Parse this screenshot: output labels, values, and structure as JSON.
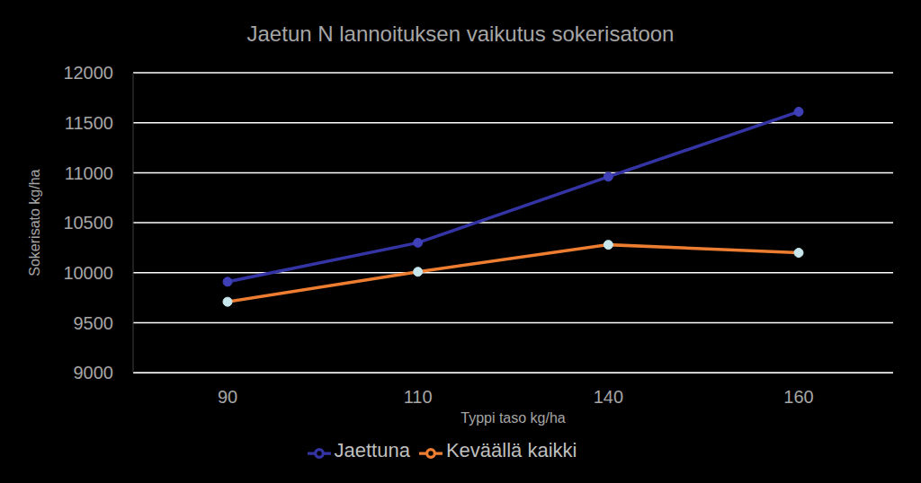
{
  "chart_data": {
    "type": "line",
    "title": "Jaetun N lannoituksen vaikutus sokerisatoon",
    "x_label": "Typpi taso kg/ha",
    "y_label": "Sokerisato kg/ha",
    "categories": [
      "90",
      "110",
      "140",
      "160"
    ],
    "series": [
      {
        "name": "Keväällä kaikki",
        "color": "#ED7D31",
        "marker": "circle",
        "values": [
          9710,
          10010,
          10280,
          10200
        ]
      },
      {
        "name": "Jaettuna",
        "color": "#3434A4",
        "marker": "circle",
        "values": [
          9910,
          10300,
          10960,
          11610
        ]
      }
    ],
    "ylim": [
      9000,
      12000
    ],
    "yticks": [
      9000,
      9500,
      10000,
      10500,
      11000,
      11500,
      12000
    ],
    "grid": true,
    "legend": "bottom"
  }
}
